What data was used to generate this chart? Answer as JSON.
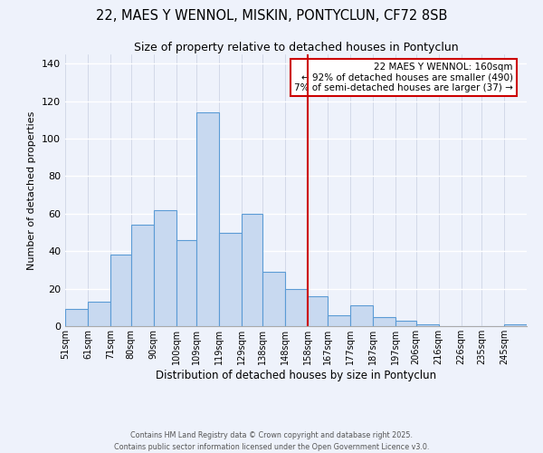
{
  "title1": "22, MAES Y WENNOL, MISKIN, PONTYCLUN, CF72 8SB",
  "title2": "Size of property relative to detached houses in Pontyclun",
  "xlabel": "Distribution of detached houses by size in Pontyclun",
  "ylabel": "Number of detached properties",
  "bar_heights": [
    9,
    13,
    38,
    54,
    62,
    46,
    114,
    50,
    60,
    29,
    20,
    16,
    6,
    11,
    5,
    3,
    1,
    0,
    0,
    0,
    1
  ],
  "bin_edges": [
    51,
    61,
    71,
    80,
    90,
    100,
    109,
    119,
    129,
    138,
    148,
    158,
    167,
    177,
    187,
    197,
    206,
    216,
    226,
    235,
    245,
    255
  ],
  "x_tick_labels": [
    "51sqm",
    "61sqm",
    "71sqm",
    "80sqm",
    "90sqm",
    "100sqm",
    "109sqm",
    "119sqm",
    "129sqm",
    "138sqm",
    "148sqm",
    "158sqm",
    "167sqm",
    "177sqm",
    "187sqm",
    "197sqm",
    "206sqm",
    "216sqm",
    "226sqm",
    "235sqm",
    "245sqm"
  ],
  "bar_color": "#c8d9f0",
  "bar_edge_color": "#5b9bd5",
  "vline_x": 158,
  "vline_color": "#cc0000",
  "ylim": [
    0,
    145
  ],
  "yticks": [
    0,
    20,
    40,
    60,
    80,
    100,
    120,
    140
  ],
  "annotation_title": "22 MAES Y WENNOL: 160sqm",
  "annotation_line1": "← 92% of detached houses are smaller (490)",
  "annotation_line2": "7% of semi-detached houses are larger (37) →",
  "annotation_box_color": "#ffffff",
  "annotation_box_edge": "#cc0000",
  "footer1": "Contains HM Land Registry data © Crown copyright and database right 2025.",
  "footer2": "Contains public sector information licensed under the Open Government Licence v3.0.",
  "bg_color": "#eef2fb",
  "grid_color": "#ffffff",
  "grid_line_color": "#c8cfe0"
}
